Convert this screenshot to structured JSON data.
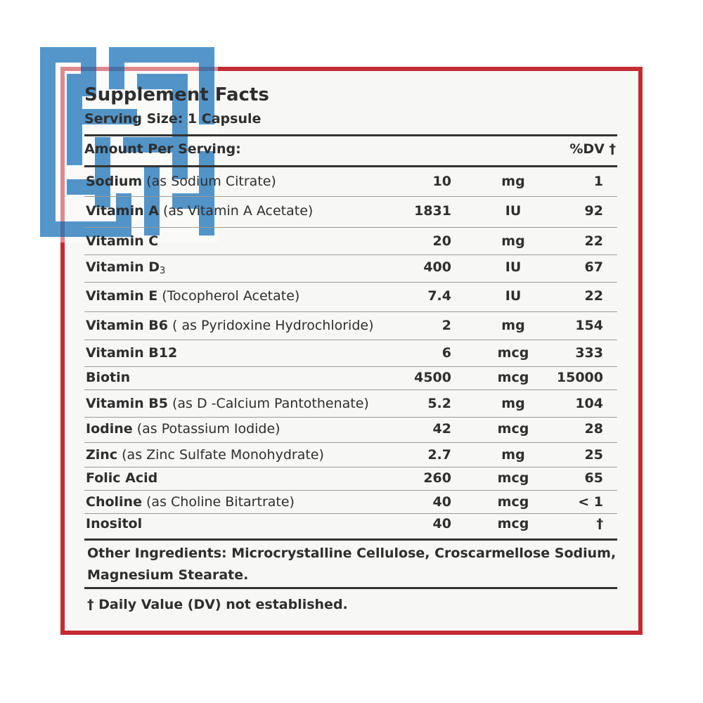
{
  "title": "Supplement Facts",
  "serving_size": "Serving Size: 1 Capsule",
  "header": {
    "amount": "Amount Per Serving:",
    "dv": "%DV †"
  },
  "rows": [
    {
      "name": "Sodium",
      "detail": "(as Sodium Citrate)",
      "amount": "10",
      "unit": "mg",
      "dv": "1"
    },
    {
      "name": "Vitamin A",
      "detail": "(as Vitamin A Acetate)",
      "amount": "1831",
      "unit": "IU",
      "dv": "92"
    },
    {
      "name": "Vitamin C",
      "amount": "20",
      "unit": "mg",
      "dv": "22"
    },
    {
      "name": "Vitamin D",
      "subscript": "3",
      "amount": "400",
      "unit": "IU",
      "dv": "67"
    },
    {
      "name": "Vitamin E",
      "detail": "(Tocopherol Acetate)",
      "amount": "7.4",
      "unit": "IU",
      "dv": "22"
    },
    {
      "name": "Vitamin B6",
      "detail": "( as Pyridoxine Hydrochloride)",
      "amount": "2",
      "unit": "mg",
      "dv": "154"
    },
    {
      "name": "Vitamin B12",
      "amount": "6",
      "unit": "mcg",
      "dv": "333"
    },
    {
      "name": "Biotin",
      "amount": "4500",
      "unit": "mcg",
      "dv": "15000"
    },
    {
      "name": "Vitamin B5",
      "detail": "(as D -Calcium Pantothenate)",
      "amount": "5.2",
      "unit": "mg",
      "dv": "104"
    },
    {
      "name": "Iodine",
      "detail": "(as Potassium Iodide)",
      "amount": "42",
      "unit": "mcg",
      "dv": "28"
    },
    {
      "name": "Zinc",
      "detail": "(as Zinc Sulfate Monohydrate)",
      "amount": "2.7",
      "unit": "mg",
      "dv": "25"
    },
    {
      "name": "Folic Acid",
      "amount": "260",
      "unit": "mcg",
      "dv": "65"
    },
    {
      "name": "Choline",
      "detail": "(as Choline Bitartrate)",
      "amount": "40",
      "unit": "mcg",
      "dv": "< 1"
    },
    {
      "name": "Inositol",
      "amount": "40",
      "unit": "mcg",
      "dv": "†"
    }
  ],
  "other_ingredients": [
    "Other Ingredients: Microcrystalline Cellulose, Croscarmellose Sodium,",
    "Magnesium Stearate."
  ],
  "footnote": "† Daily Value (DV) not established."
}
